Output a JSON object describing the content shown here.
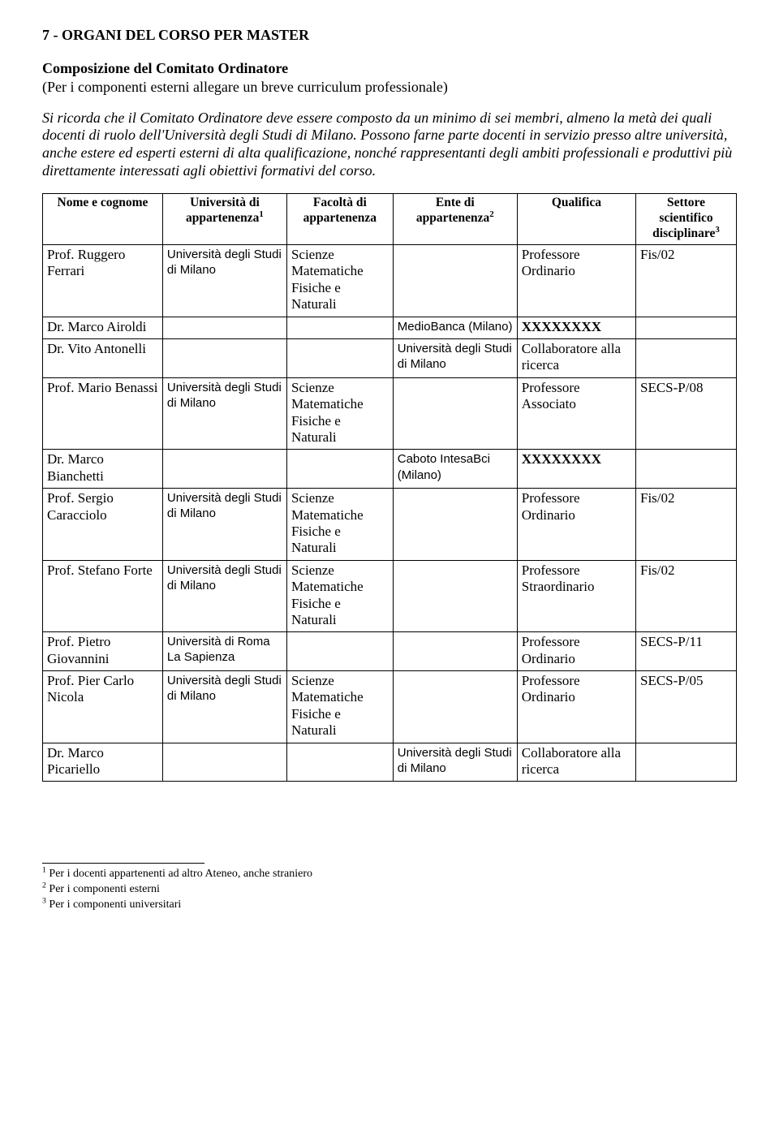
{
  "heading": "7 - ORGANI DEL CORSO PER MASTER",
  "subheading": "Composizione del Comitato Ordinatore",
  "paren": "(Per i componenti esterni allegare un breve curriculum professionale)",
  "intro_italic": "Si ricorda che il Comitato Ordinatore deve essere composto da un minimo di sei membri, almeno la metà dei quali docenti di ruolo dell'Università degli Studi di Milano. Possono farne parte docenti in servizio presso altre università, anche estere ed esperti esterni di alta qualificazione, nonché rappresentanti degli ambiti professionali e produttivi più direttamente interessati agli obiettivi formativi del corso.",
  "headers": {
    "name": "Nome e cognome",
    "uni_pre": "Università di appartenenza",
    "fac": "Facoltà di appartenenza",
    "ente_pre": "Ente di appartenenza",
    "qual": "Qualifica",
    "sett_pre": "Settore scientifico disciplinare"
  },
  "uni_milano": "Università degli Studi di Milano",
  "uni_roma": "Università di Roma La Sapienza",
  "facolta_scienze": "Scienze Matematiche Fisiche e Naturali",
  "rows": [
    {
      "name": "Prof. Ruggero Ferrari",
      "uni": "milano",
      "fac": true,
      "ente": "",
      "qual": "Professore Ordinario",
      "sett": "Fis/02"
    },
    {
      "name": "Dr. Marco Airoldi",
      "uni": "",
      "fac": false,
      "ente": "MedioBanca (Milano)",
      "qual": "XXXXXXXX",
      "sett": ""
    },
    {
      "name": "Dr. Vito Antonelli",
      "uni": "",
      "fac": false,
      "ente": "Università degli Studi di Milano",
      "qual": "Collaboratore alla ricerca",
      "sett": ""
    },
    {
      "name": "Prof. Mario Benassi",
      "uni": "milano",
      "fac": true,
      "ente": "",
      "qual": "Professore Associato",
      "sett": "SECS-P/08"
    },
    {
      "name": "Dr. Marco Bianchetti",
      "uni": "",
      "fac": false,
      "ente": "Caboto IntesaBci (Milano)",
      "qual": "XXXXXXXX",
      "sett": ""
    },
    {
      "name": "Prof. Sergio Caracciolo",
      "uni": "milano",
      "fac": true,
      "ente": "",
      "qual": "Professore Ordinario",
      "sett": "Fis/02"
    },
    {
      "name": "Prof. Stefano Forte",
      "uni": "milano",
      "fac": true,
      "ente": "",
      "qual": "Professore Straordinario",
      "sett": "Fis/02"
    },
    {
      "name": "Prof. Pietro Giovannini",
      "uni": "roma",
      "fac": false,
      "ente": "",
      "qual": "Professore Ordinario",
      "sett": "SECS-P/11"
    },
    {
      "name": "Prof. Pier Carlo Nicola",
      "uni": "milano",
      "fac": true,
      "ente": "",
      "qual": "Professore Ordinario",
      "sett": "SECS-P/05"
    },
    {
      "name": "Dr. Marco Picariello",
      "uni": "",
      "fac": false,
      "ente": "Università degli Studi di Milano",
      "qual": "Collaboratore alla ricerca",
      "sett": ""
    }
  ],
  "footnotes": {
    "f1": "Per i docenti appartenenti ad altro Ateneo, anche straniero",
    "f2": "Per i componenti esterni",
    "f3": "Per i componenti universitari"
  },
  "ente_sans_keys": [
    "MedioBanca (Milano)",
    "Università degli Studi di Milano",
    "Caboto IntesaBci (Milano)"
  ]
}
